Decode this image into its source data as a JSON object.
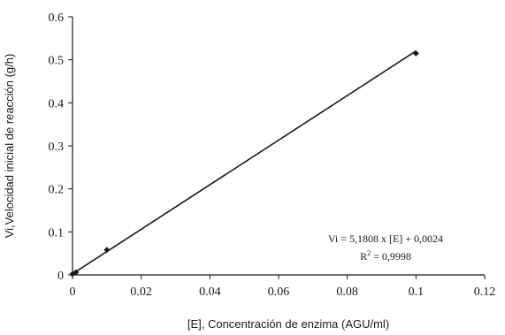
{
  "chart_data": {
    "type": "scatter",
    "xlabel": "[E], Concentración de enzima  (AGU/ml)",
    "ylabel": "Vi,Velocidad inicial de reacción  (g/h)",
    "xlim": [
      0,
      0.12
    ],
    "ylim": [
      0,
      0.6
    ],
    "x_ticks": [
      0,
      0.02,
      0.04,
      0.06,
      0.08,
      0.1,
      0.12
    ],
    "x_tick_labels": [
      "0",
      "0.02",
      "0.04",
      "0.06",
      "0.08",
      "0.1",
      "0.12"
    ],
    "y_ticks": [
      0,
      0.1,
      0.2,
      0.3,
      0.4,
      0.5,
      0.6
    ],
    "y_tick_labels": [
      "0",
      "0.1",
      "0.2",
      "0.3",
      "0.4",
      "0.5",
      "0.6"
    ],
    "grid": false,
    "series": [
      {
        "x": [
          0,
          0.001,
          0.01,
          0.1
        ],
        "y": [
          0.002,
          0.006,
          0.058,
          0.515
        ]
      }
    ],
    "trendline": {
      "slope": 5.1808,
      "intercept": 0.0024,
      "x_range": [
        0,
        0.1
      ]
    },
    "annotations": {
      "equation": "Vi = 5,1808 x [E] + 0,0024",
      "r2_prefix": "R",
      "r2_exp": "2",
      "r2_value": " = 0,9998"
    },
    "colors": {
      "axis": "#1a1a1a",
      "line": "#1a1a1a",
      "marker": "#1a1a1a"
    }
  }
}
